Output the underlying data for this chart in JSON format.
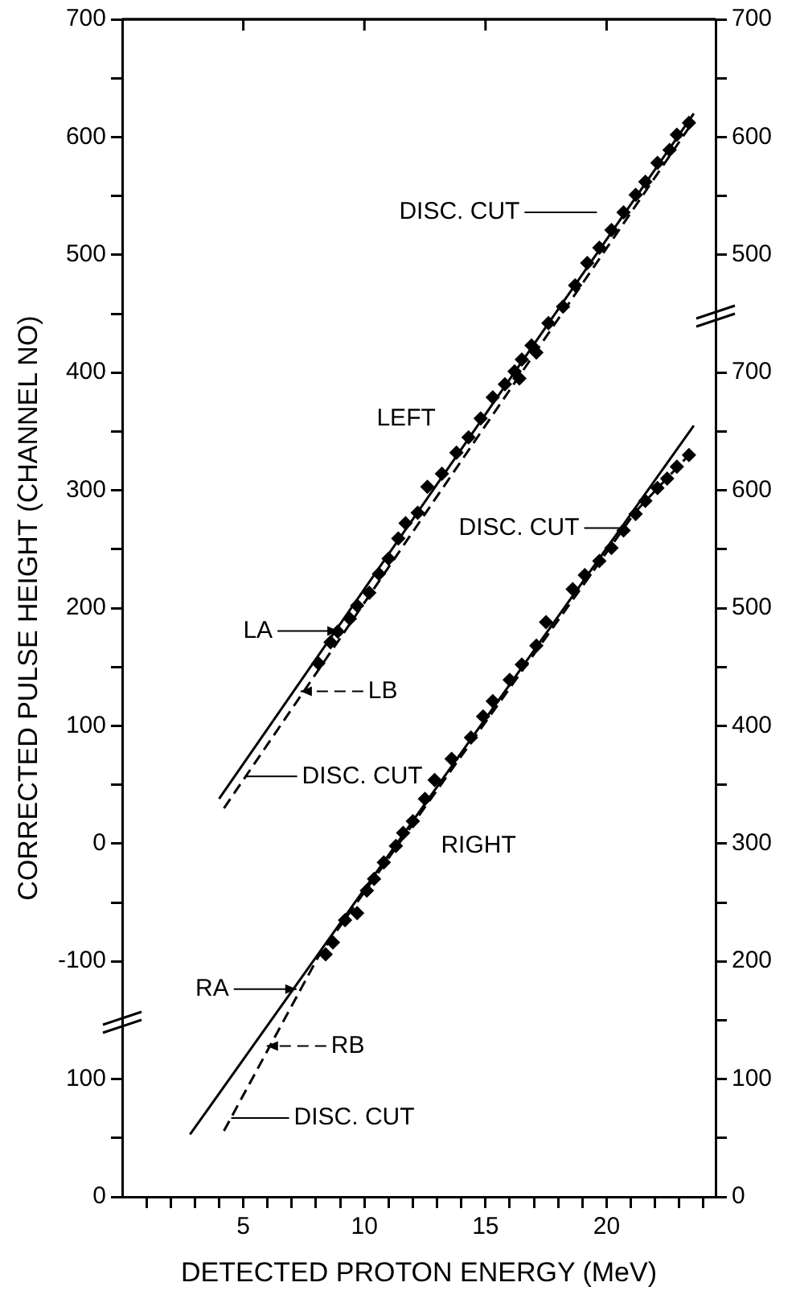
{
  "chart_data": [
    {
      "type": "scatter",
      "ylabel": "CORRECTED PULSE HEIGHT (CHANNEL NO)",
      "tick_labels": "y",
      "xlim": [
        0,
        24.5
      ],
      "ylim": [
        -300,
        700
      ],
      "yticks": [
        -100,
        {
          "value": -50,
          "label": null
        },
        0,
        {
          "value": 50,
          "label": null
        },
        100,
        {
          "value": 150,
          "label": null
        },
        200,
        {
          "value": 250,
          "label": null
        },
        300,
        {
          "value": 350,
          "label": null
        },
        400,
        {
          "value": 450,
          "label": null
        },
        500,
        {
          "value": 550,
          "label": null
        },
        600,
        {
          "value": 650,
          "label": null
        },
        700
      ],
      "y2lim": [
        -300,
        700
      ],
      "y2ticks": [
        500,
        {
          "value": 550,
          "label": null
        },
        600,
        {
          "value": 650,
          "label": null
        },
        700
      ],
      "marker": "diamond",
      "series": [
        {
          "name": "LEFT",
          "type": "scatter",
          "color": "#000000",
          "x": [
            8.1,
            8.6,
            8.9,
            9.4,
            9.7,
            10.2,
            10.6,
            11.0,
            11.4,
            11.7,
            12.2,
            12.6,
            13.2,
            13.8,
            14.3,
            14.8,
            15.3,
            15.8,
            16.2,
            16.4,
            16.5,
            16.9,
            17.0,
            17.1,
            17.6,
            18.2,
            18.7,
            19.2,
            19.7,
            20.2,
            20.7,
            21.2,
            21.6,
            22.1,
            22.6,
            22.9,
            23.4
          ],
          "values": [
            153,
            171,
            180,
            191,
            202,
            213,
            229,
            242,
            259,
            272,
            281,
            303,
            314,
            332,
            345,
            361,
            379,
            390,
            401,
            395,
            411,
            423,
            null,
            417,
            442,
            456,
            474,
            493,
            506,
            521,
            536,
            551,
            562,
            578,
            589,
            602,
            612
          ]
        },
        {
          "name": "LA",
          "type": "line",
          "marker": "none",
          "line_style": "solid",
          "color": "#000000",
          "x": [
            4.0,
            23.6
          ],
          "values": [
            38,
            620
          ]
        },
        {
          "name": "LB",
          "type": "line",
          "marker": "none",
          "line_style": "dashed",
          "color": "#000000",
          "x": [
            4.2,
            23.6
          ],
          "values": [
            30,
            614
          ]
        }
      ],
      "annotations": [
        "DISC. CUT",
        {
          "text": "DISC. CUT",
          "x": 5.1,
          "y": 57
        }
      ]
    },
    {
      "type": "scatter",
      "xlabel": "DETECTED PROTON ENERGY (MeV)",
      "xlim": [
        0,
        24.5
      ],
      "xticks": [
        {
          "value": 1,
          "label": null
        },
        {
          "value": 2,
          "label": null
        },
        {
          "value": 3,
          "label": null
        },
        {
          "value": 4,
          "label": null
        },
        5,
        {
          "value": 6,
          "label": null
        },
        {
          "value": 7,
          "label": null
        },
        {
          "value": 8,
          "label": null
        },
        {
          "value": 9,
          "label": null
        },
        10,
        {
          "value": 11,
          "label": null
        },
        {
          "value": 12,
          "label": null
        },
        {
          "value": 13,
          "label": null
        },
        {
          "value": 14,
          "label": null
        },
        15,
        {
          "value": 16,
          "label": null
        },
        {
          "value": 17,
          "label": null
        },
        {
          "value": 18,
          "label": null
        },
        {
          "value": 19,
          "label": null
        },
        20,
        {
          "value": 21,
          "label": null
        },
        {
          "value": 22,
          "label": null
        },
        {
          "value": 23,
          "label": null
        },
        {
          "value": 24,
          "label": null
        }
      ],
      "ylim": [
        0,
        1000
      ],
      "yticks": [
        0,
        {
          "value": 50,
          "label": null
        },
        100
      ],
      "y2lim": [
        0,
        1000
      ],
      "y2ticks": [
        0,
        {
          "value": 50,
          "label": null
        },
        100,
        {
          "value": 150,
          "label": null
        },
        200,
        {
          "value": 250,
          "label": null
        },
        300,
        {
          "value": 350,
          "label": null
        },
        400,
        {
          "value": 450,
          "label": null
        },
        500,
        {
          "value": 550,
          "label": null
        },
        600,
        {
          "value": 650,
          "label": null
        },
        700
      ],
      "marker": "diamond",
      "series": [
        {
          "name": "RIGHT",
          "type": "scatter",
          "color": "#000000",
          "x": [
            8.4,
            8.7,
            9.2,
            9.7,
            10.1,
            10.4,
            10.8,
            11.3,
            11.6,
            12.0,
            12.5,
            12.9,
            13.6,
            14.4,
            14.9,
            15.3,
            16.0,
            16.5,
            17.1,
            17.5,
            18.6,
            19.1,
            19.7,
            20.2,
            20.7,
            21.2,
            21.6,
            22.1,
            22.5,
            22.9,
            23.4
          ],
          "values": [
            206,
            216,
            235,
            241,
            260,
            270,
            284,
            298,
            309,
            319,
            338,
            354,
            372,
            390,
            408,
            421,
            439,
            452,
            468,
            488,
            516,
            528,
            540,
            551,
            566,
            580,
            591,
            602,
            610,
            620,
            630
          ]
        },
        {
          "name": "RA",
          "type": "line",
          "marker": "none",
          "line_style": "solid",
          "color": "#000000",
          "x": [
            2.8,
            23.6
          ],
          "values": [
            53,
            655
          ]
        },
        {
          "name": "RB",
          "type": "line",
          "marker": "none",
          "line_style": "dashed",
          "color": "#000000",
          "x": [
            4.2,
            8.1,
            21.2,
            23.4
          ],
          "values": [
            56,
            204,
            582,
            630
          ]
        }
      ],
      "annotations": [
        {
          "text": "DISC. CUT",
          "x": 20.6,
          "y": 568
        },
        {
          "text": "DISC. CUT",
          "x": 4.5,
          "y": 67
        }
      ]
    }
  ]
}
